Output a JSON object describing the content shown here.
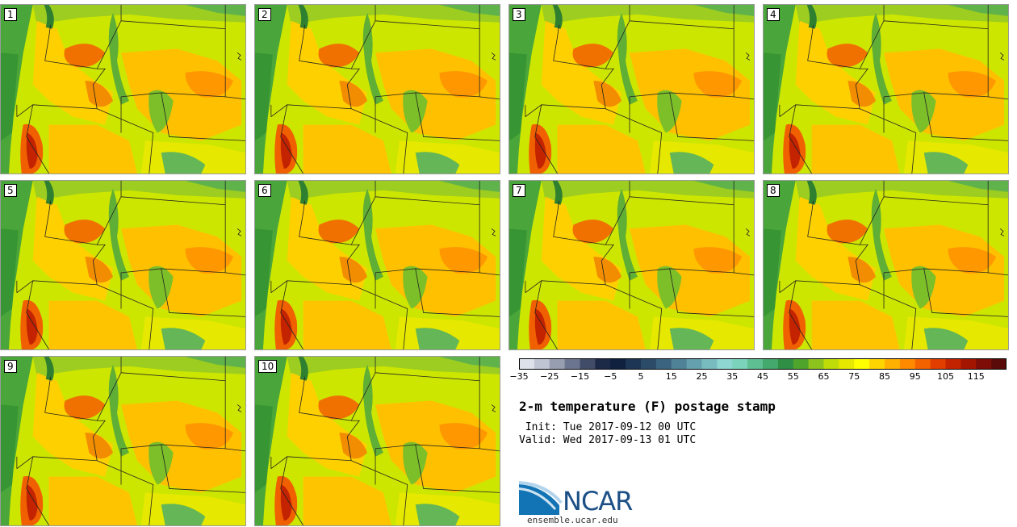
{
  "panels": [
    {
      "label": "1"
    },
    {
      "label": "2"
    },
    {
      "label": "3"
    },
    {
      "label": "4"
    },
    {
      "label": "5"
    },
    {
      "label": "6"
    },
    {
      "label": "7"
    },
    {
      "label": "8"
    },
    {
      "label": "9"
    },
    {
      "label": "10"
    }
  ],
  "colorbar": {
    "colors": [
      "#dde2ea",
      "#bfc5d2",
      "#979eb0",
      "#6c7590",
      "#404c68",
      "#1c2947",
      "#10203f",
      "#1e3655",
      "#2c4b69",
      "#3b6480",
      "#4f8296",
      "#64a0ad",
      "#79bcc0",
      "#8ed6d2",
      "#7cd3bb",
      "#5ebf92",
      "#43a96c",
      "#2f8f45",
      "#4fa52b",
      "#8cc41d",
      "#bfdc08",
      "#e6e800",
      "#ffff00",
      "#ffd500",
      "#ffb000",
      "#ff8a00",
      "#f46200",
      "#e23e00",
      "#c42300",
      "#a41500",
      "#7d0d06",
      "#5a0a08"
    ],
    "ticks": [
      "-35",
      "-25",
      "-15",
      "-5",
      "5",
      "15",
      "25",
      "35",
      "45",
      "55",
      "65",
      "75",
      "85",
      "95",
      "105",
      "115"
    ]
  },
  "title": "2-m temperature (F) postage stamp",
  "init_text": " Init: Tue 2017-09-12 00 UTC",
  "valid_text": "Valid: Wed 2017-09-13 01 UTC",
  "logo": {
    "text": "NCAR",
    "site": "ensemble.ucar.edu"
  }
}
